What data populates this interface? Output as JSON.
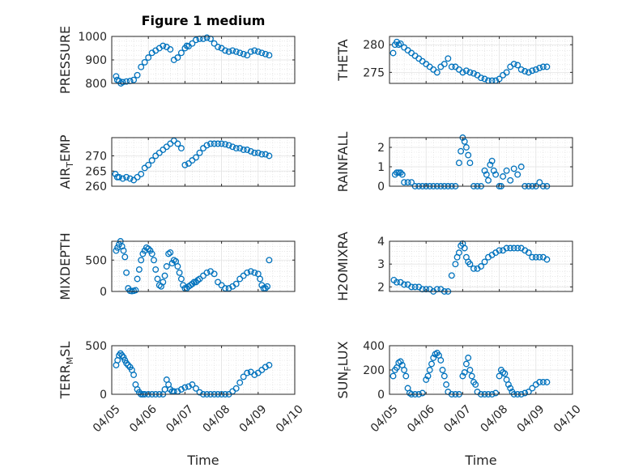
{
  "figure": {
    "title": "Figure 1 medium",
    "xlabel": "Time",
    "marker_color": "#0072BD"
  },
  "x_ticks": [
    "04/05",
    "04/06",
    "04/07",
    "04/08",
    "04/09",
    "04/10"
  ],
  "chart_data": [
    {
      "type": "scatter",
      "ylabel": "PRESSURE",
      "xlim": [
        0,
        5
      ],
      "ylim": [
        800,
        1000
      ],
      "yticks": [
        800,
        900,
        1000
      ],
      "grid": true,
      "marker": "circle",
      "x": [
        0.12,
        0.15,
        0.2,
        0.25,
        0.3,
        0.4,
        0.5,
        0.6,
        0.7,
        0.8,
        0.9,
        1.0,
        1.1,
        1.2,
        1.3,
        1.4,
        1.5,
        1.6,
        1.7,
        1.8,
        1.9,
        2.0,
        2.05,
        2.1,
        2.2,
        2.3,
        2.4,
        2.5,
        2.6,
        2.7,
        2.8,
        2.9,
        3.0,
        3.1,
        3.2,
        3.3,
        3.4,
        3.5,
        3.6,
        3.7,
        3.8,
        3.9,
        4.0,
        4.1,
        4.2,
        4.3
      ],
      "y": [
        830,
        815,
        810,
        800,
        805,
        808,
        810,
        815,
        835,
        870,
        890,
        910,
        930,
        940,
        950,
        960,
        955,
        945,
        900,
        910,
        930,
        950,
        960,
        958,
        970,
        985,
        990,
        990,
        995,
        990,
        970,
        955,
        950,
        940,
        935,
        940,
        935,
        930,
        925,
        920,
        935,
        940,
        935,
        930,
        925,
        920
      ]
    },
    {
      "type": "scatter",
      "ylabel": "THETA",
      "xlim": [
        0,
        5
      ],
      "ylim": [
        273,
        281.5
      ],
      "yticks": [
        275,
        280
      ],
      "grid": true,
      "marker": "circle",
      "x": [
        0.1,
        0.15,
        0.2,
        0.25,
        0.3,
        0.4,
        0.5,
        0.6,
        0.7,
        0.8,
        0.9,
        1.0,
        1.1,
        1.2,
        1.3,
        1.4,
        1.5,
        1.6,
        1.7,
        1.8,
        1.9,
        2.0,
        2.1,
        2.2,
        2.3,
        2.4,
        2.5,
        2.6,
        2.7,
        2.8,
        2.9,
        3.0,
        3.1,
        3.2,
        3.3,
        3.4,
        3.5,
        3.6,
        3.7,
        3.8,
        3.9,
        4.0,
        4.1,
        4.2,
        4.3
      ],
      "y": [
        278.5,
        280,
        280.5,
        280,
        280.2,
        279.5,
        279,
        278.5,
        278,
        277.5,
        277,
        276.5,
        276,
        275.5,
        275,
        276,
        276.5,
        277.5,
        276,
        276,
        275.5,
        275,
        275.3,
        275,
        274.8,
        274.5,
        274,
        273.8,
        273.5,
        273.5,
        273.5,
        273.8,
        274.5,
        275,
        276,
        276.5,
        276.3,
        275.5,
        275.2,
        275,
        275.3,
        275.5,
        275.8,
        276,
        276
      ]
    },
    {
      "type": "scatter",
      "ylabel": "AIR_TEMP",
      "ylabel_main": "AIR",
      "ylabel_sub": "T",
      "ylabel_tail": "EMP",
      "xlim": [
        0,
        5
      ],
      "ylim": [
        260,
        276
      ],
      "yticks": [
        260,
        265,
        270
      ],
      "grid": true,
      "marker": "circle",
      "x": [
        0.1,
        0.15,
        0.2,
        0.3,
        0.4,
        0.5,
        0.6,
        0.7,
        0.8,
        0.9,
        1.0,
        1.1,
        1.2,
        1.3,
        1.4,
        1.5,
        1.6,
        1.7,
        1.8,
        1.9,
        2.0,
        2.1,
        2.2,
        2.3,
        2.4,
        2.5,
        2.6,
        2.7,
        2.8,
        2.9,
        3.0,
        3.1,
        3.2,
        3.3,
        3.4,
        3.5,
        3.6,
        3.7,
        3.8,
        3.9,
        4.0,
        4.1,
        4.2,
        4.3
      ],
      "y": [
        264,
        263,
        263,
        262.5,
        263,
        262.5,
        262,
        263,
        264,
        266,
        267,
        268.5,
        270,
        271,
        272,
        273,
        274,
        275,
        274,
        272.5,
        267,
        267.5,
        268.5,
        269.5,
        271,
        272.5,
        273.5,
        274,
        274,
        274,
        274,
        273.8,
        273.5,
        273,
        272.5,
        272.5,
        272,
        272,
        271.5,
        271,
        271,
        270.5,
        270.5,
        270
      ]
    },
    {
      "type": "scatter",
      "ylabel": "RAINFALL",
      "xlim": [
        0,
        5
      ],
      "ylim": [
        0,
        2.5
      ],
      "yticks": [
        0,
        1,
        2
      ],
      "grid": true,
      "marker": "circle",
      "x": [
        0.15,
        0.2,
        0.25,
        0.3,
        0.35,
        0.4,
        0.5,
        0.6,
        0.7,
        0.8,
        0.9,
        1.0,
        1.1,
        1.2,
        1.3,
        1.4,
        1.5,
        1.6,
        1.7,
        1.8,
        1.9,
        1.95,
        2.0,
        2.05,
        2.1,
        2.15,
        2.2,
        2.3,
        2.4,
        2.5,
        2.6,
        2.65,
        2.7,
        2.75,
        2.8,
        2.85,
        2.9,
        3.0,
        3.05,
        3.1,
        3.2,
        3.3,
        3.4,
        3.5,
        3.6,
        3.7,
        3.8,
        3.9,
        4.0,
        4.1,
        4.2,
        4.3
      ],
      "y": [
        0.6,
        0.7,
        0.7,
        0.7,
        0.6,
        0.2,
        0.2,
        0.2,
        0,
        0,
        0,
        0,
        0,
        0,
        0,
        0,
        0,
        0,
        0,
        0,
        1.2,
        1.8,
        2.5,
        2.3,
        2.0,
        1.6,
        1.2,
        0,
        0,
        0,
        0.8,
        0.6,
        0.3,
        1.1,
        1.3,
        0.8,
        0.6,
        0,
        0,
        0.5,
        0.8,
        0.3,
        0.9,
        0.6,
        1.0,
        0,
        0,
        0,
        0,
        0.2,
        0,
        0
      ]
    },
    {
      "type": "scatter",
      "ylabel": "MIXDEPTH",
      "xlim": [
        0,
        5
      ],
      "ylim": [
        0,
        800
      ],
      "yticks": [
        0,
        500
      ],
      "grid": true,
      "marker": "circle",
      "x": [
        0.12,
        0.16,
        0.2,
        0.24,
        0.28,
        0.32,
        0.36,
        0.4,
        0.45,
        0.5,
        0.55,
        0.6,
        0.65,
        0.7,
        0.75,
        0.8,
        0.85,
        0.9,
        0.95,
        1.0,
        1.05,
        1.1,
        1.15,
        1.2,
        1.25,
        1.3,
        1.35,
        1.4,
        1.45,
        1.5,
        1.55,
        1.6,
        1.65,
        1.7,
        1.75,
        1.8,
        1.85,
        1.9,
        1.95,
        2.0,
        2.05,
        2.1,
        2.15,
        2.2,
        2.25,
        2.3,
        2.35,
        2.4,
        2.5,
        2.6,
        2.7,
        2.8,
        2.9,
        3.0,
        3.1,
        3.2,
        3.3,
        3.4,
        3.5,
        3.6,
        3.7,
        3.8,
        3.9,
        4.0,
        4.05,
        4.1,
        4.15,
        4.2,
        4.25,
        4.3
      ],
      "y": [
        650,
        700,
        750,
        800,
        720,
        650,
        550,
        300,
        50,
        10,
        5,
        10,
        20,
        200,
        350,
        500,
        600,
        650,
        700,
        680,
        650,
        600,
        500,
        350,
        200,
        100,
        80,
        150,
        250,
        400,
        600,
        620,
        450,
        500,
        480,
        400,
        300,
        200,
        100,
        50,
        50,
        80,
        100,
        120,
        150,
        150,
        180,
        200,
        250,
        300,
        320,
        280,
        150,
        100,
        50,
        50,
        80,
        120,
        200,
        250,
        300,
        320,
        300,
        280,
        200,
        100,
        50,
        50,
        80,
        500
      ]
    },
    {
      "type": "scatter",
      "ylabel": "H2OMIXRA",
      "xlim": [
        0,
        5
      ],
      "ylim": [
        1.8,
        4.0
      ],
      "yticks": [
        2,
        3,
        4
      ],
      "grid": true,
      "marker": "circle",
      "x": [
        0.12,
        0.2,
        0.3,
        0.4,
        0.5,
        0.6,
        0.7,
        0.8,
        0.9,
        1.0,
        1.1,
        1.2,
        1.3,
        1.4,
        1.5,
        1.6,
        1.7,
        1.8,
        1.85,
        1.9,
        1.95,
        2.0,
        2.05,
        2.1,
        2.15,
        2.2,
        2.3,
        2.4,
        2.5,
        2.6,
        2.7,
        2.8,
        2.9,
        3.0,
        3.1,
        3.2,
        3.3,
        3.4,
        3.5,
        3.6,
        3.7,
        3.8,
        3.9,
        4.0,
        4.1,
        4.2,
        4.3
      ],
      "y": [
        2.3,
        2.2,
        2.2,
        2.1,
        2.1,
        2.0,
        2.0,
        2.0,
        1.9,
        1.9,
        1.9,
        1.8,
        1.9,
        1.9,
        1.8,
        1.8,
        2.5,
        3.0,
        3.3,
        3.5,
        3.8,
        3.9,
        3.7,
        3.3,
        3.1,
        3.0,
        2.8,
        2.8,
        2.9,
        3.1,
        3.3,
        3.4,
        3.5,
        3.6,
        3.6,
        3.7,
        3.7,
        3.7,
        3.7,
        3.7,
        3.6,
        3.5,
        3.3,
        3.3,
        3.3,
        3.3,
        3.2
      ]
    },
    {
      "type": "scatter",
      "ylabel": "TERR_MSL",
      "ylabel_main": "TERR",
      "ylabel_sub": "M",
      "ylabel_tail": "SL",
      "xlim": [
        0,
        5
      ],
      "ylim": [
        0,
        500
      ],
      "yticks": [
        0,
        500
      ],
      "grid": true,
      "marker": "circle",
      "x": [
        0.12,
        0.16,
        0.2,
        0.24,
        0.28,
        0.32,
        0.36,
        0.4,
        0.45,
        0.5,
        0.55,
        0.6,
        0.65,
        0.7,
        0.75,
        0.8,
        0.85,
        0.9,
        1.0,
        1.1,
        1.2,
        1.3,
        1.4,
        1.45,
        1.5,
        1.55,
        1.6,
        1.65,
        1.7,
        1.8,
        1.9,
        2.0,
        2.1,
        2.2,
        2.3,
        2.4,
        2.5,
        2.6,
        2.7,
        2.8,
        2.9,
        3.0,
        3.1,
        3.2,
        3.3,
        3.4,
        3.5,
        3.6,
        3.7,
        3.8,
        3.9,
        4.0,
        4.1,
        4.2,
        4.3
      ],
      "y": [
        300,
        350,
        400,
        420,
        400,
        380,
        350,
        320,
        300,
        280,
        250,
        200,
        100,
        50,
        20,
        0,
        0,
        0,
        0,
        0,
        0,
        0,
        0,
        50,
        150,
        100,
        50,
        30,
        30,
        30,
        50,
        70,
        80,
        100,
        60,
        20,
        0,
        0,
        0,
        0,
        0,
        0,
        0,
        0,
        30,
        60,
        120,
        180,
        220,
        230,
        200,
        220,
        250,
        280,
        300
      ]
    },
    {
      "type": "scatter",
      "ylabel": "SUN_FLUX",
      "ylabel_main": "SUN",
      "ylabel_sub": "F",
      "ylabel_tail": "LUX",
      "xlim": [
        0,
        5
      ],
      "ylim": [
        0,
        400
      ],
      "yticks": [
        0,
        200,
        400
      ],
      "grid": true,
      "marker": "circle",
      "x": [
        0.1,
        0.15,
        0.2,
        0.25,
        0.3,
        0.35,
        0.4,
        0.45,
        0.5,
        0.55,
        0.6,
        0.7,
        0.8,
        0.9,
        1.0,
        1.05,
        1.1,
        1.15,
        1.2,
        1.25,
        1.3,
        1.35,
        1.4,
        1.45,
        1.5,
        1.55,
        1.6,
        1.7,
        1.8,
        1.9,
        2.0,
        2.05,
        2.1,
        2.15,
        2.2,
        2.25,
        2.3,
        2.35,
        2.4,
        2.5,
        2.6,
        2.7,
        2.8,
        2.9,
        3.0,
        3.05,
        3.1,
        3.15,
        3.2,
        3.25,
        3.3,
        3.35,
        3.4,
        3.5,
        3.6,
        3.7,
        3.8,
        3.9,
        4.0,
        4.1,
        4.2,
        4.3
      ],
      "y": [
        150,
        200,
        220,
        260,
        270,
        240,
        200,
        150,
        50,
        10,
        0,
        0,
        0,
        10,
        120,
        150,
        200,
        250,
        300,
        330,
        340,
        320,
        280,
        200,
        150,
        80,
        20,
        0,
        0,
        0,
        150,
        180,
        250,
        300,
        200,
        150,
        100,
        80,
        20,
        0,
        0,
        0,
        0,
        10,
        150,
        200,
        180,
        170,
        120,
        80,
        50,
        20,
        0,
        0,
        0,
        10,
        20,
        50,
        80,
        100,
        100,
        100
      ]
    }
  ]
}
